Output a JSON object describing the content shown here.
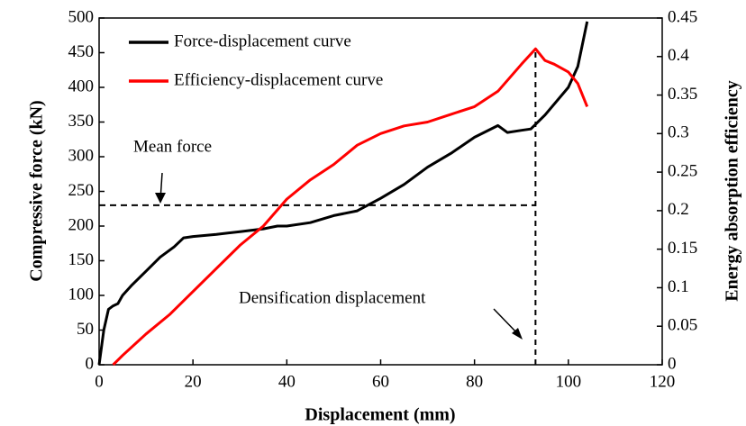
{
  "chart_data": {
    "type": "line",
    "xlabel": "Displacement (mm)",
    "ylabel": "Compressive force  (kN)",
    "y2label": "Energy absorption efficiency",
    "xlim": [
      0,
      120
    ],
    "xticks": [
      0,
      20,
      40,
      60,
      80,
      100,
      120
    ],
    "ylim": [
      0,
      500
    ],
    "yticks": [
      0,
      50,
      100,
      150,
      200,
      250,
      300,
      350,
      400,
      450,
      500
    ],
    "y2lim": [
      0,
      0.45
    ],
    "y2ticks": [
      0,
      0.05,
      0.1,
      0.15,
      0.2,
      0.25,
      0.3,
      0.35,
      0.4,
      0.45
    ],
    "legend": "upper left",
    "series": [
      {
        "name": "Force-displacement curve",
        "color": "#000000",
        "x": [
          0,
          1,
          2,
          3,
          4,
          5,
          7,
          10,
          13,
          16,
          18,
          20,
          25,
          30,
          35,
          38,
          40,
          45,
          50,
          55,
          60,
          65,
          70,
          75,
          80,
          85,
          87,
          90,
          92,
          95,
          100,
          102,
          104
        ],
        "values": [
          0,
          50,
          80,
          85,
          88,
          100,
          115,
          135,
          155,
          170,
          183,
          185,
          188,
          192,
          196,
          200,
          200,
          205,
          215,
          222,
          240,
          260,
          285,
          305,
          328,
          345,
          335,
          338,
          340,
          360,
          400,
          430,
          495
        ]
      },
      {
        "name": "Efficiency-displacement curve",
        "color": "#ff0000",
        "axis": "y2",
        "x": [
          3,
          5,
          10,
          15,
          20,
          25,
          30,
          35,
          40,
          45,
          50,
          55,
          60,
          65,
          70,
          75,
          80,
          85,
          90,
          93,
          95,
          97,
          100,
          102,
          104
        ],
        "values": [
          0,
          0.012,
          0.04,
          0.065,
          0.095,
          0.125,
          0.155,
          0.18,
          0.215,
          0.24,
          0.26,
          0.285,
          0.3,
          0.31,
          0.315,
          0.325,
          0.335,
          0.355,
          0.39,
          0.41,
          0.395,
          0.39,
          0.38,
          0.365,
          0.335
        ]
      }
    ],
    "mean_force": {
      "label": "Mean force",
      "value": 230
    },
    "densification_displacement": {
      "label": "Densification displacement",
      "value": 93
    }
  }
}
